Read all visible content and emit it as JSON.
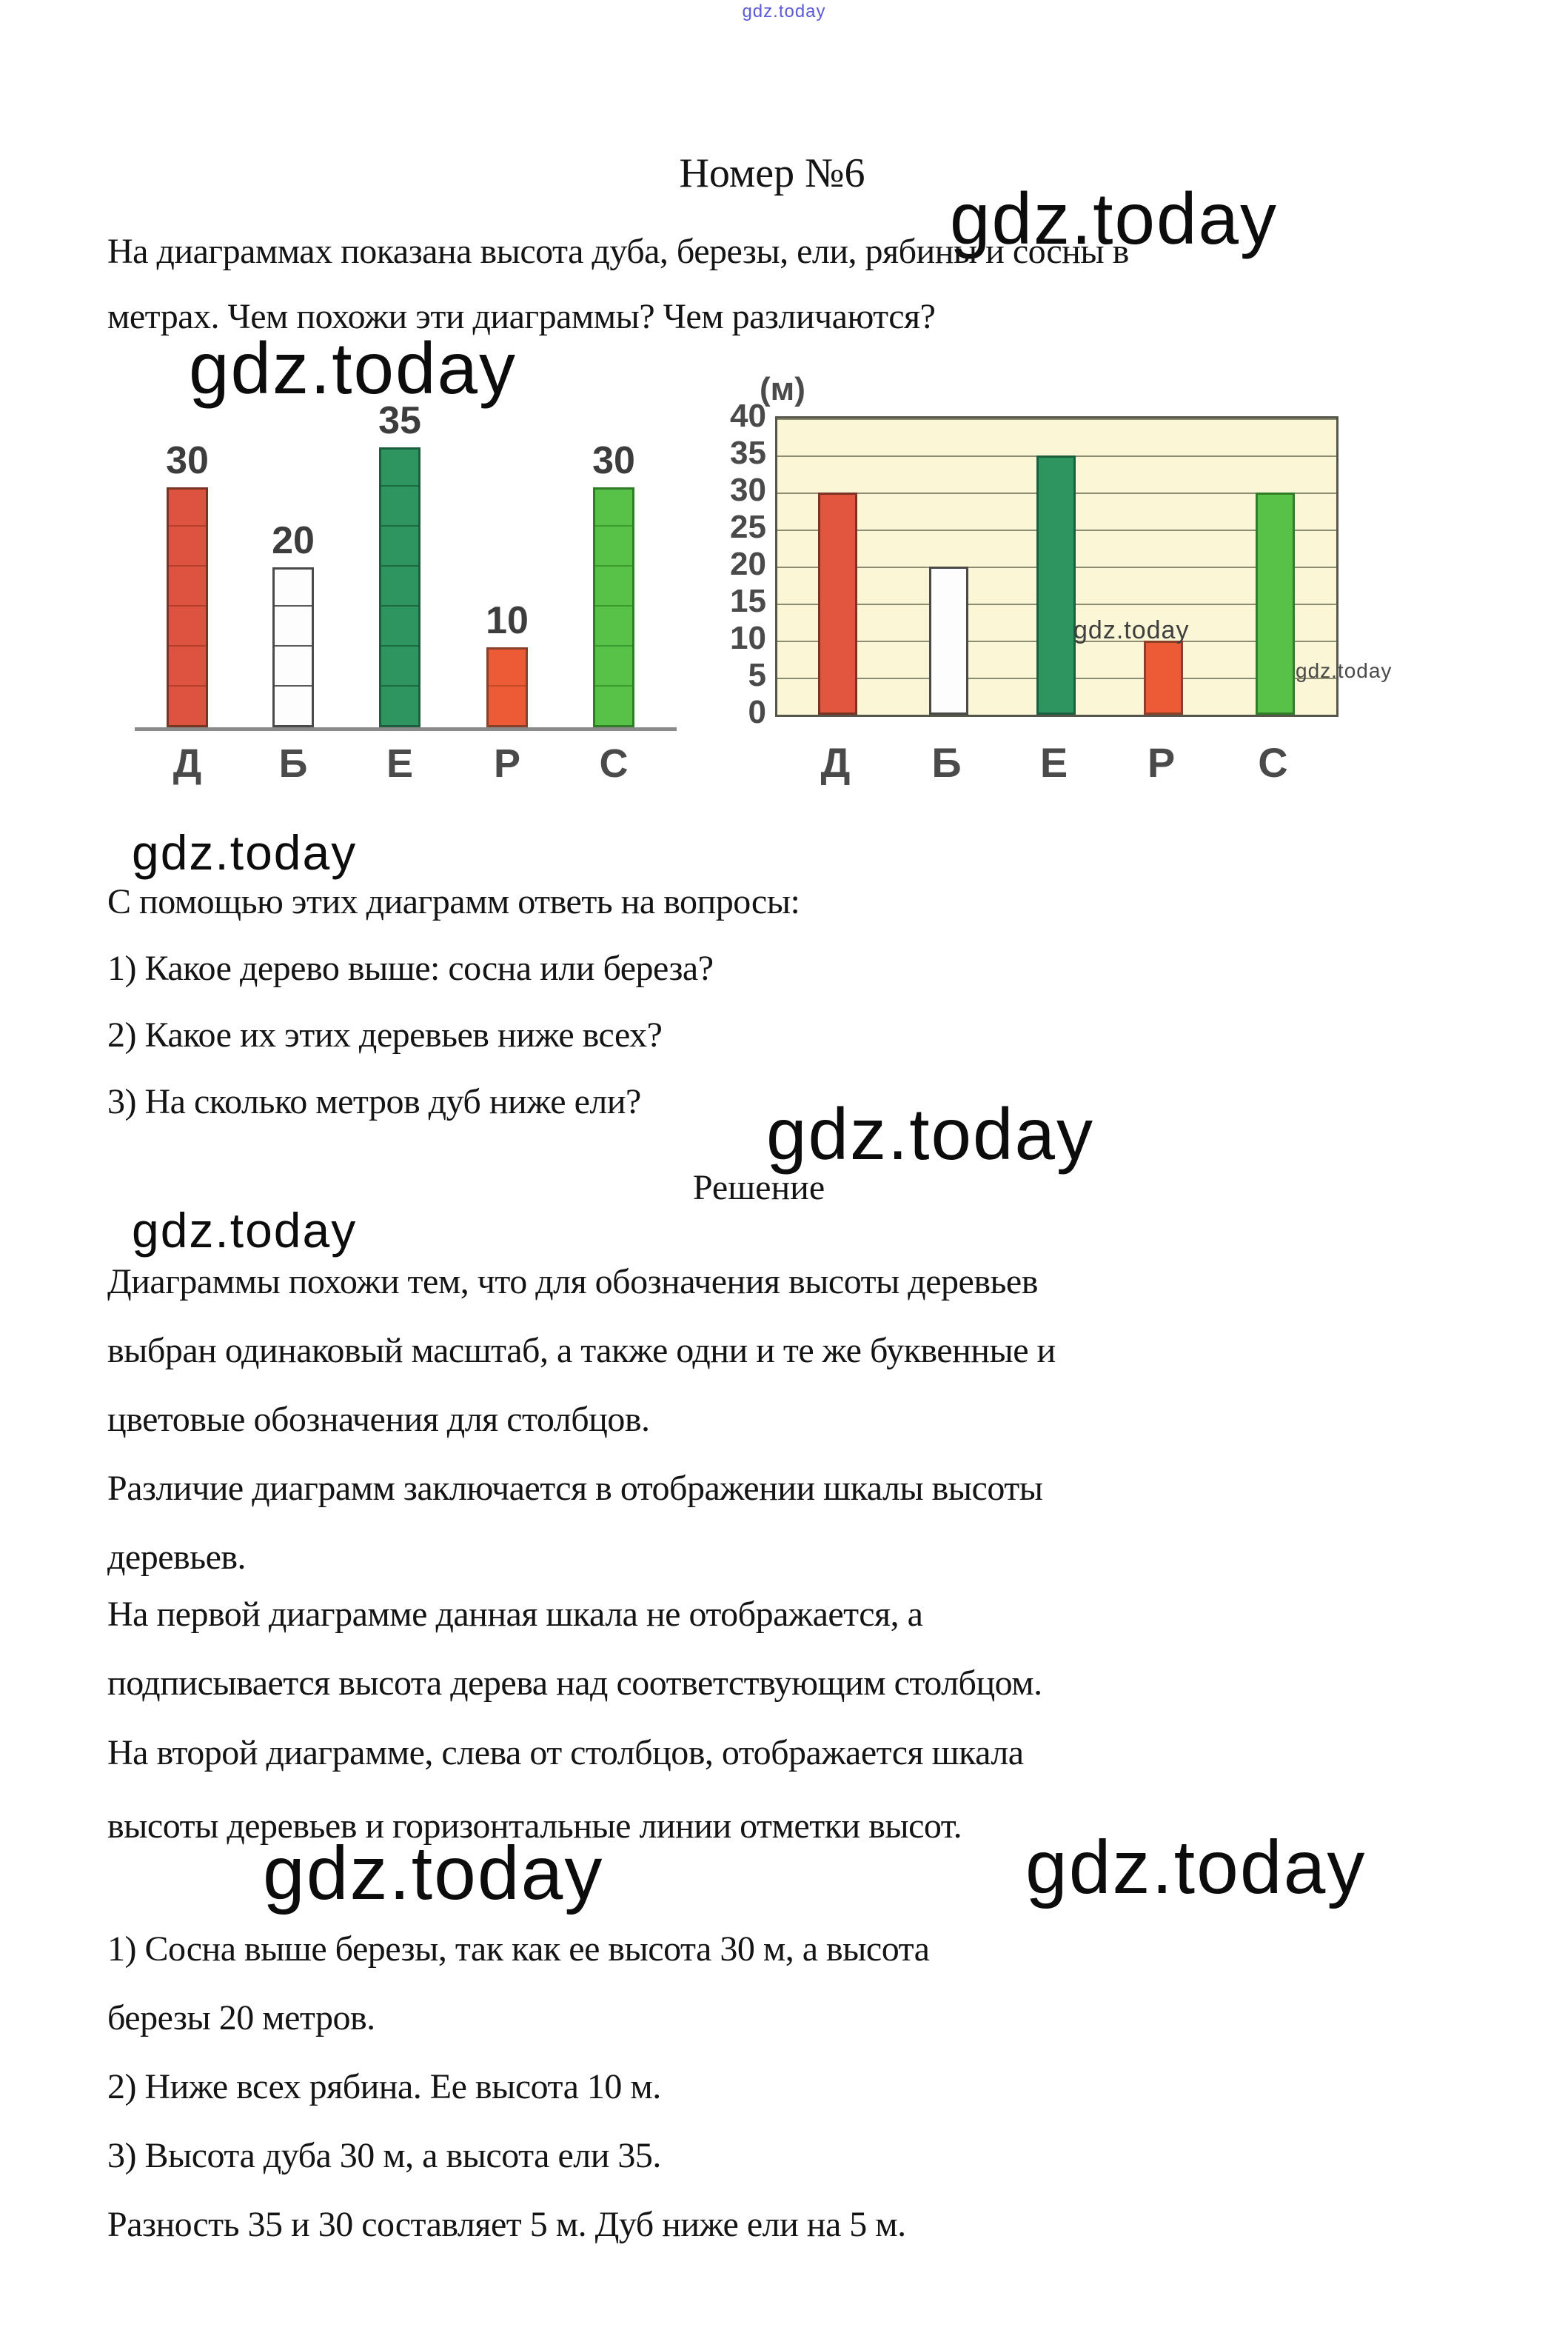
{
  "page": {
    "title": "Номер №6",
    "watermark": "gdz.today",
    "watermark_color": "#5b5bd6"
  },
  "problem": {
    "lines": [
      "На диаграммах показана высота дуба, березы, ели, рябины и сосны в",
      "метрах. Чем похожи эти диаграммы? Чем различаются?"
    ]
  },
  "questions": {
    "intro": "С помощью этих диаграмм ответь на вопросы:",
    "items": [
      "1) Какое дерево выше: сосна или береза?",
      "2) Какое их этих деревьев ниже всех?",
      "3) На сколько метров дуб ниже ели?"
    ]
  },
  "solution": {
    "heading": "Решение",
    "lines": [
      "Диаграммы похожи тем, что для обозначения высоты деревьев",
      "выбран одинаковый масштаб, а также одни и те же буквенные и",
      "цветовые обозначения для столбцов.",
      "Различие диаграмм заключается в отображении шкалы высоты",
      "деревьев.",
      "На первой диаграмме данная шкала не отображается, а",
      "подписывается высота дерева над соответствующим столбцом.",
      "На второй диаграмме, слева от столбцов, отображается шкала",
      "высоты деревьев и горизонтальные линии отметки высот."
    ],
    "answers": [
      "1) Сосна выше березы, так как ее высота 30 м, а высота",
      "березы 20 метров.",
      "2) Ниже всех рябина. Ее высота 10 м.",
      "3) Высота дуба 30 м, а высота ели 35.",
      "Разность 35 и 30 составляет 5 м. Дуб ниже ели на 5 м."
    ]
  },
  "chart_data": [
    {
      "type": "bar",
      "title": "",
      "categories": [
        "Д",
        "Б",
        "Е",
        "Р",
        "С"
      ],
      "values": [
        30,
        20,
        35,
        10,
        30
      ],
      "value_labels": [
        "30",
        "20",
        "35",
        "10",
        "30"
      ],
      "ylim": [
        0,
        40
      ],
      "grid": false,
      "axis_style": "baseline only, no scale; values printed above bars",
      "segment_line_every": 5,
      "bar_colors": [
        "#dd5340",
        "#fdfdfd",
        "#2e9560",
        "#ec5b36",
        "#57c247"
      ],
      "segment_line_colors": [
        "#b4402b",
        "#5a5a5a",
        "#1c6a42",
        "#c44a28",
        "#3a9c2e"
      ],
      "border_colors": [
        "#7a3425",
        "#4a4a48",
        "#1c5e3e",
        "#8a4029",
        "#2f7d26"
      ]
    },
    {
      "type": "bar",
      "title": "",
      "unit_label": "(м)",
      "categories": [
        "Д",
        "Б",
        "Е",
        "Р",
        "С"
      ],
      "values": [
        30,
        20,
        35,
        10,
        30
      ],
      "yticks": [
        0,
        5,
        10,
        15,
        20,
        25,
        30,
        35,
        40
      ],
      "ylim": [
        0,
        40
      ],
      "grid": true,
      "legend": "none",
      "plot_background": "#faf6d6",
      "gridline_color": "#8d8d72",
      "bar_colors": [
        "#e2553e",
        "#fdfdfd",
        "#2e9560",
        "#ec5b36",
        "#57c247"
      ],
      "border_colors": [
        "#7a3425",
        "#4a4a48",
        "#1c5e3e",
        "#8a4029",
        "#2f7d26"
      ],
      "watermarks": [
        "gdz.today",
        "gdz.today"
      ]
    }
  ]
}
